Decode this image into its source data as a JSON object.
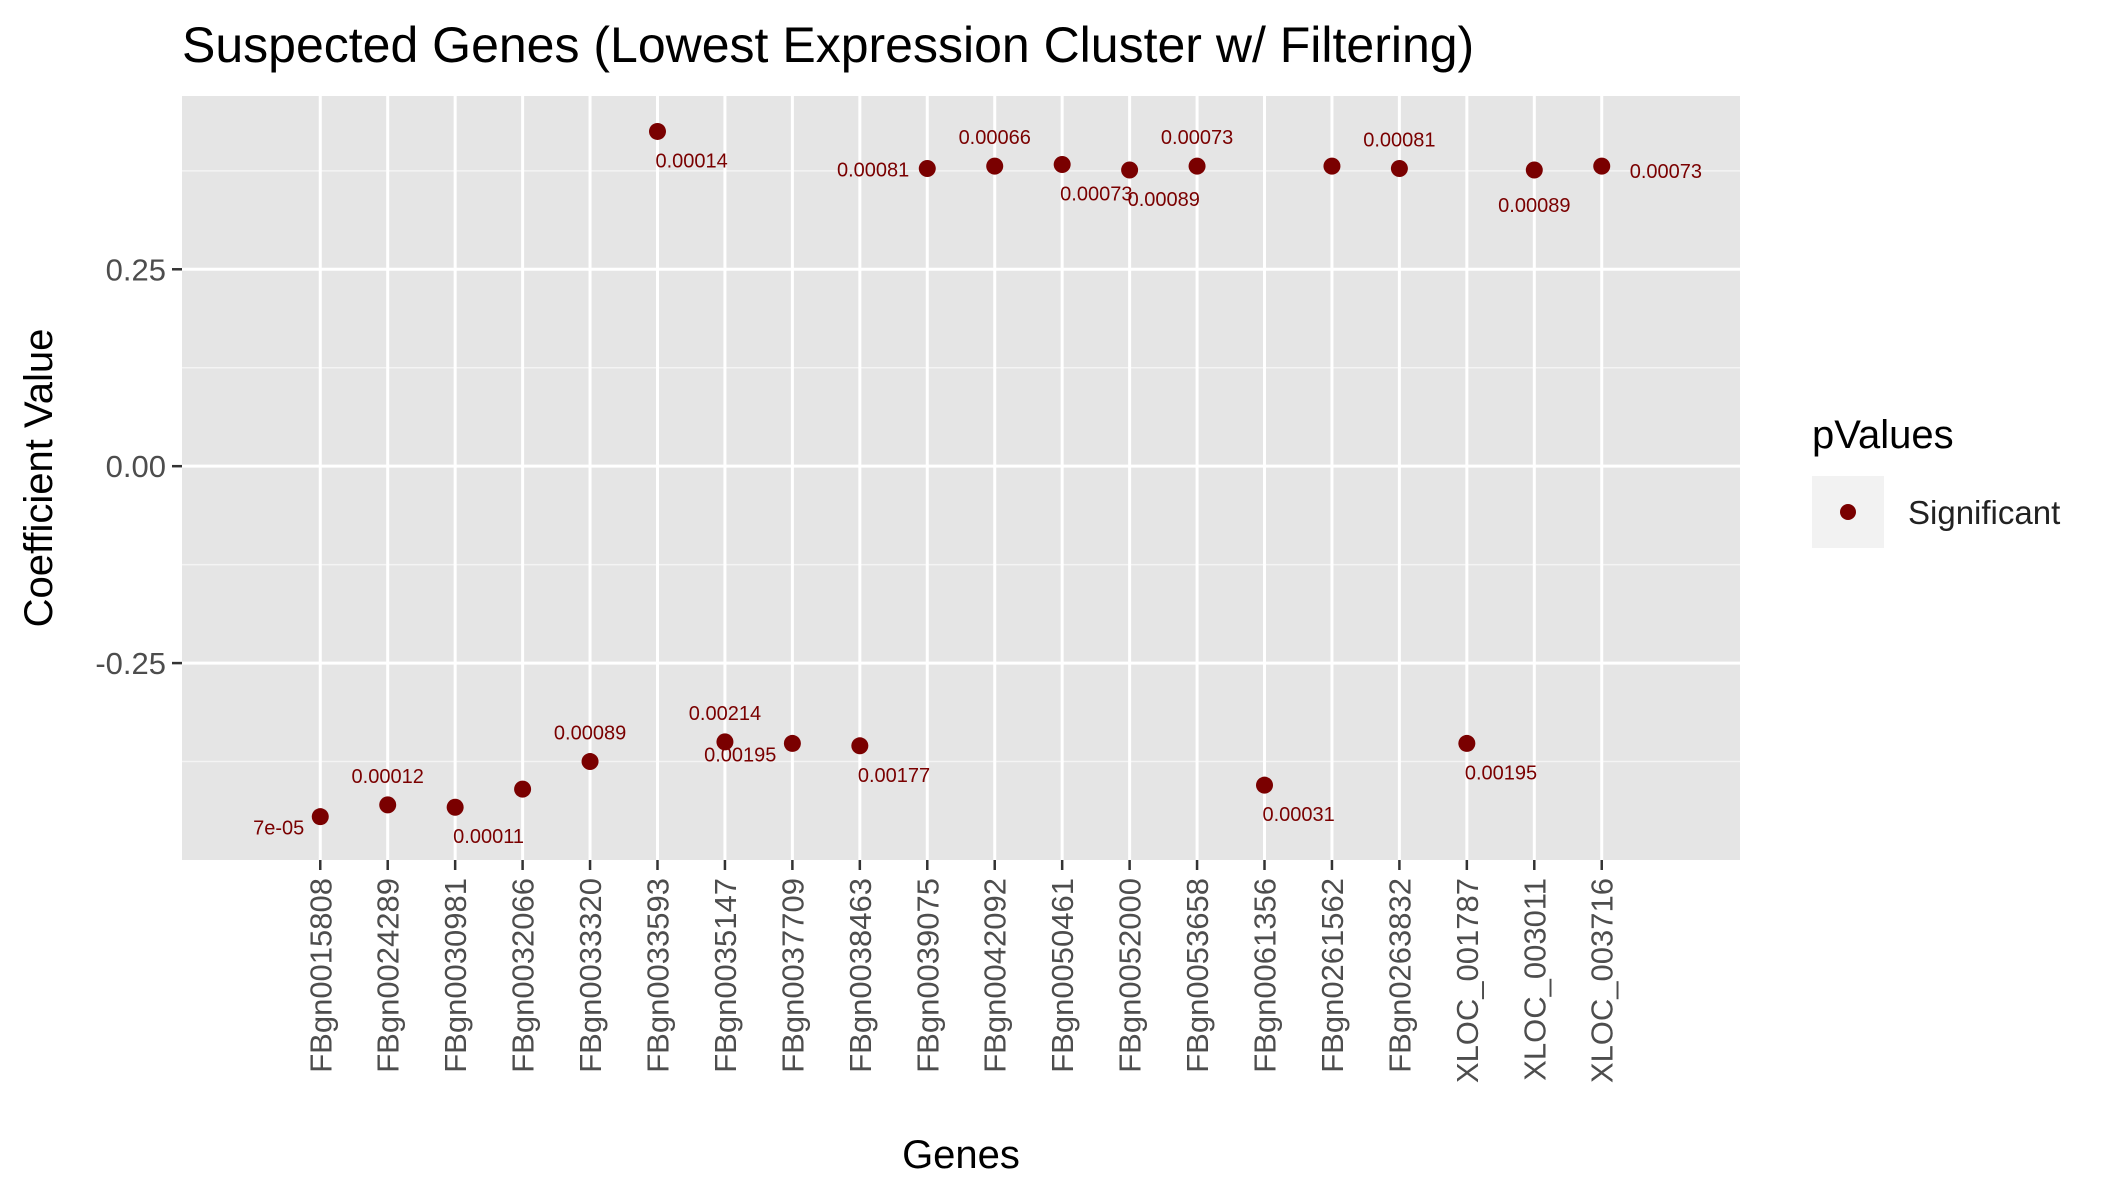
{
  "chart_data": {
    "type": "scatter",
    "title": "Suspected Genes (Lowest Expression Cluster w/ Filtering)",
    "xlabel": "Genes",
    "ylabel": "Coefficient Value",
    "ylim": [
      -0.5,
      0.47
    ],
    "y_ticks": [
      -0.25,
      0.0,
      0.25
    ],
    "y_tick_labels": [
      "-0.25",
      "0.00",
      "0.25"
    ],
    "grid": true,
    "legend": {
      "title": "pValues",
      "position": "right",
      "entries": [
        {
          "label": "Significant",
          "color": "#7a0000"
        }
      ]
    },
    "categories": [
      "FBgn0015808",
      "FBgn0024289",
      "FBgn0030981",
      "FBgn0032066",
      "FBgn0033320",
      "FBgn0033593",
      "FBgn0035147",
      "FBgn0037709",
      "FBgn0038463",
      "FBgn0039075",
      "FBgn0042092",
      "FBgn0050461",
      "FBgn0052000",
      "FBgn0053658",
      "FBgn0061356",
      "FBgn0261562",
      "FBgn0263832",
      "XLOC_001787",
      "XLOC_003011",
      "XLOC_003716"
    ],
    "series": [
      {
        "name": "Significant",
        "color": "#7a0000",
        "values": [
          -0.445,
          -0.43,
          -0.433,
          -0.41,
          -0.375,
          0.425,
          -0.35,
          -0.352,
          -0.355,
          0.378,
          0.381,
          0.383,
          0.376,
          0.381,
          -0.405,
          0.381,
          0.378,
          -0.352,
          0.376,
          0.381
        ],
        "point_labels": [
          "7e-05",
          "0.00012",
          "0.00011",
          "",
          "0.00089",
          "0.00014",
          "0.00214",
          "0.00195",
          "0.00177",
          "0.00081",
          "0.00066",
          "0.00073",
          "0.00089",
          "0.00073",
          "0.00031",
          "",
          "0.00081",
          "0.00195",
          "0.00089",
          "0.00073"
        ],
        "label_placement": [
          "left-below",
          "above",
          "right-below",
          "",
          "above",
          "right-below",
          "above",
          "left-below",
          "right-below",
          "left",
          "above",
          "right-below",
          "right-below",
          "above",
          "right-below",
          "",
          "above",
          "right-below",
          "below",
          "right"
        ]
      }
    ]
  }
}
